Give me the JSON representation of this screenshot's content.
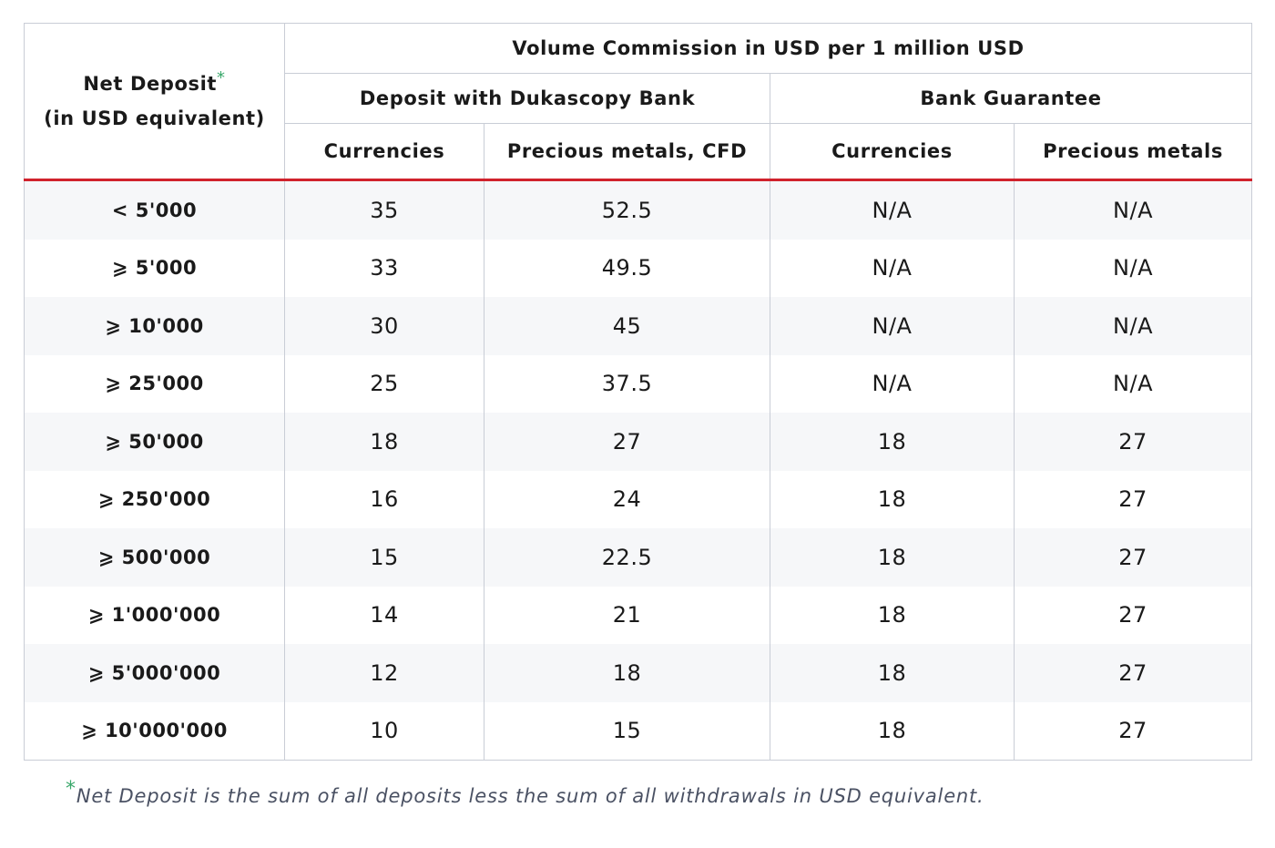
{
  "header": {
    "net_deposit_label": "Net Deposit",
    "net_deposit_marker": "*",
    "net_deposit_sub": "(in USD equivalent)",
    "volume_commission": "Volume Commission in USD per 1 million USD",
    "group_deposit": "Deposit with Dukascopy Bank",
    "group_guarantee": "Bank Guarantee",
    "col_dep_currencies": "Currencies",
    "col_dep_metals": "Precious metals, CFD",
    "col_bg_currencies": "Currencies",
    "col_bg_metals": "Precious  metals"
  },
  "rows": [
    {
      "deposit": "< 5'000",
      "dep_currencies": "35",
      "dep_metals": "52.5",
      "bg_currencies": "N/A",
      "bg_metals": "N/A"
    },
    {
      "deposit": "⩾ 5'000",
      "dep_currencies": "33",
      "dep_metals": "49.5",
      "bg_currencies": "N/A",
      "bg_metals": "N/A"
    },
    {
      "deposit": "⩾ 10'000",
      "dep_currencies": "30",
      "dep_metals": "45",
      "bg_currencies": "N/A",
      "bg_metals": "N/A"
    },
    {
      "deposit": "⩾ 25'000",
      "dep_currencies": "25",
      "dep_metals": "37.5",
      "bg_currencies": "N/A",
      "bg_metals": "N/A"
    },
    {
      "deposit": "⩾ 50'000",
      "dep_currencies": "18",
      "dep_metals": "27",
      "bg_currencies": "18",
      "bg_metals": "27"
    },
    {
      "deposit": "⩾ 250'000",
      "dep_currencies": "16",
      "dep_metals": "24",
      "bg_currencies": "18",
      "bg_metals": "27"
    },
    {
      "deposit": "⩾ 500'000",
      "dep_currencies": "15",
      "dep_metals": "22.5",
      "bg_currencies": "18",
      "bg_metals": "27"
    },
    {
      "deposit": "⩾ 1'000'000",
      "dep_currencies": "14",
      "dep_metals": "21",
      "bg_currencies": "18",
      "bg_metals": "27"
    },
    {
      "deposit": "⩾ 5'000'000",
      "dep_currencies": "12",
      "dep_metals": "18",
      "bg_currencies": "18",
      "bg_metals": "27"
    },
    {
      "deposit": "⩾ 10'000'000",
      "dep_currencies": "10",
      "dep_metals": "15",
      "bg_currencies": "18",
      "bg_metals": "27"
    }
  ],
  "footnote": {
    "marker": "*",
    "text": "Net Deposit is the sum of all deposits less the sum of all withdrawals in USD equivalent."
  },
  "colors": {
    "accent_red": "#d0222c",
    "marker_green": "#3aa86b",
    "border": "#c9cdd6",
    "stripe": "#f6f7f9"
  }
}
